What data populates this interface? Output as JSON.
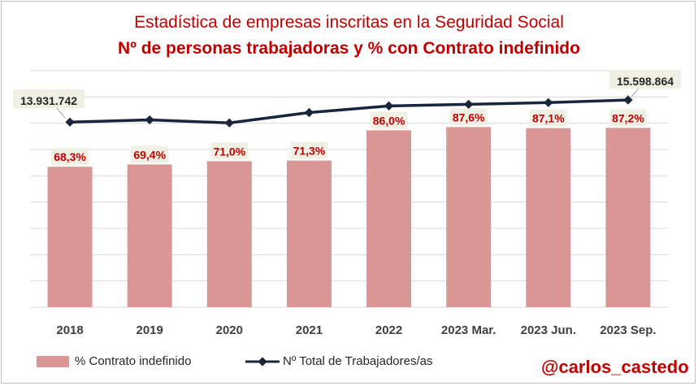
{
  "chart_data": {
    "type": "bar",
    "title": "Estadística de empresas inscritas en la Seguridad Social",
    "subtitle": "Nº de personas trabajadoras  y % con Contrato indefinido",
    "categories": [
      "2018",
      "2019",
      "2020",
      "2021",
      "2022",
      "2023 Mar.",
      "2023 Jun.",
      "2023 Sep."
    ],
    "series": [
      {
        "name": "% Contrato indefinido",
        "type": "bar",
        "values": [
          68.3,
          69.4,
          71.0,
          71.3,
          86.0,
          87.6,
          87.1,
          87.2
        ],
        "labels": [
          "68,3%",
          "69,4%",
          "71,0%",
          "71,3%",
          "86,0%",
          "87,6%",
          "87,1%",
          "87,2%"
        ],
        "color": "#d99694"
      },
      {
        "name": "Nº Total de Trabajadores/as",
        "type": "line",
        "values": [
          13931742,
          14100000,
          13870000,
          14650000,
          15150000,
          15270000,
          15400000,
          15598864
        ],
        "labels": [
          "13.931.742",
          "",
          "",
          "",
          "",
          "",
          "",
          "15.598.864"
        ],
        "color": "#17263c"
      }
    ],
    "bar_axis": {
      "min": 0,
      "max": 115
    },
    "line_axis": {
      "min": 0,
      "max": 17800000
    },
    "grid": true,
    "legend": "bottom-left"
  },
  "credit": "@carlos_castedo",
  "colors": {
    "title": "#c00000",
    "label_bg": "#f0efe3",
    "grid": "#d9d9d9"
  }
}
